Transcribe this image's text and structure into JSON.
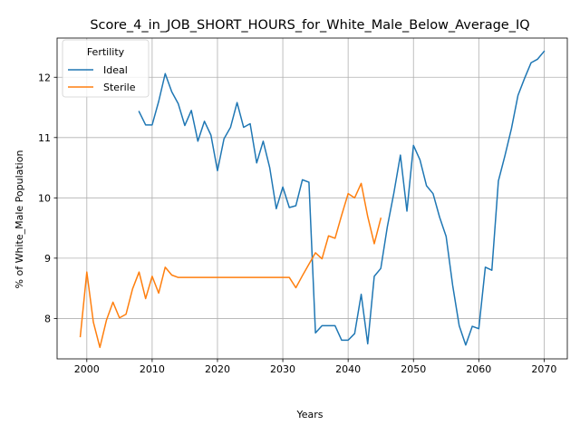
{
  "chart_data": {
    "type": "line",
    "title": "Score_4_in_JOB_SHORT_HOURS_for_White_Male_Below_Average_IQ",
    "xlabel": "Years",
    "ylabel": "% of White_Male Population",
    "xlim": [
      1995.45,
      2073.55
    ],
    "ylim": [
      7.33,
      12.65
    ],
    "x_ticks": [
      2000,
      2010,
      2020,
      2030,
      2040,
      2050,
      2060,
      2070
    ],
    "y_ticks": [
      8,
      9,
      10,
      11,
      12
    ],
    "grid": true,
    "legend": {
      "title": "Fertility",
      "placement": "upper-left"
    },
    "series": [
      {
        "name": "Ideal",
        "color": "#1f77b4",
        "x": [
          2008,
          2009,
          2010,
          2011,
          2012,
          2013,
          2014,
          2015,
          2016,
          2017,
          2018,
          2019,
          2020,
          2021,
          2022,
          2023,
          2024,
          2025,
          2026,
          2027,
          2028,
          2029,
          2030,
          2031,
          2032,
          2033,
          2034,
          2035,
          2036,
          2037,
          2038,
          2039,
          2040,
          2041,
          2042,
          2043,
          2044,
          2045,
          2046,
          2047,
          2048,
          2049,
          2050,
          2051,
          2052,
          2053,
          2054,
          2055,
          2056,
          2057,
          2058,
          2059,
          2060,
          2061,
          2062,
          2063,
          2064,
          2065,
          2066,
          2067,
          2068,
          2069,
          2070
        ],
        "values": [
          11.43,
          11.21,
          11.21,
          11.6,
          12.06,
          11.76,
          11.56,
          11.2,
          11.45,
          10.94,
          11.27,
          11.04,
          10.45,
          10.98,
          11.17,
          11.58,
          11.17,
          11.23,
          10.58,
          10.94,
          10.5,
          9.82,
          10.18,
          9.84,
          9.87,
          10.3,
          10.26,
          7.76,
          7.88,
          7.88,
          7.88,
          7.64,
          7.64,
          7.75,
          8.4,
          7.58,
          8.7,
          8.83,
          9.52,
          10.08,
          10.71,
          9.78,
          10.87,
          10.63,
          10.2,
          10.07,
          9.68,
          9.36,
          8.55,
          7.88,
          7.56,
          7.87,
          7.83,
          8.85,
          8.8,
          10.28,
          10.7,
          11.15,
          11.7,
          11.98,
          12.24,
          12.3,
          12.43
        ]
      },
      {
        "name": "Sterile",
        "color": "#ff7f0e",
        "x": [
          1999,
          2000,
          2001,
          2002,
          2003,
          2004,
          2005,
          2006,
          2007,
          2008,
          2009,
          2010,
          2011,
          2012,
          2013,
          2014,
          2015,
          2016,
          2017,
          2018,
          2019,
          2020,
          2021,
          2022,
          2023,
          2024,
          2025,
          2026,
          2027,
          2028,
          2029,
          2030,
          2031,
          2032,
          2033,
          2034,
          2035,
          2036,
          2037,
          2038,
          2039,
          2040,
          2041,
          2042,
          2043,
          2044,
          2045
        ],
        "values": [
          7.7,
          8.77,
          7.94,
          7.52,
          7.97,
          8.27,
          8.01,
          8.07,
          8.49,
          8.77,
          8.33,
          8.7,
          8.42,
          8.85,
          8.72,
          8.68,
          8.68,
          8.68,
          8.68,
          8.68,
          8.68,
          8.68,
          8.68,
          8.68,
          8.68,
          8.68,
          8.68,
          8.68,
          8.68,
          8.68,
          8.68,
          8.68,
          8.68,
          8.51,
          8.71,
          8.9,
          9.09,
          8.99,
          9.37,
          9.33,
          9.71,
          10.07,
          10.0,
          10.24,
          9.69,
          9.24,
          9.66
        ]
      }
    ]
  }
}
